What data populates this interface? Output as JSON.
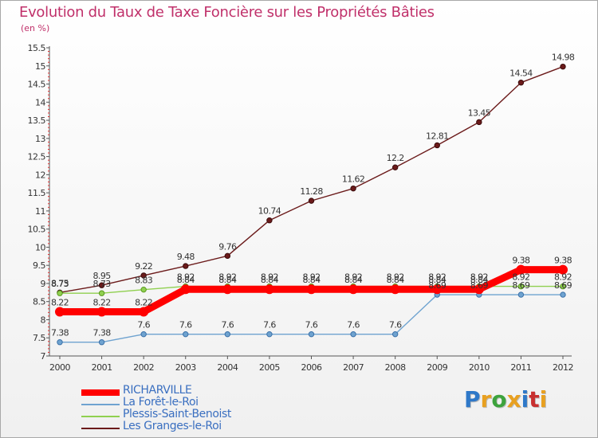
{
  "title": "Evolution du Taux de Taxe Foncière sur les Propriétés Bâties",
  "unit_label": "(en %)",
  "logo": {
    "text": "Proxiti",
    "letters": [
      "P",
      "r",
      "o",
      "x",
      "i",
      "t",
      "i"
    ],
    "colors": [
      "#2e78c8",
      "#e8a020",
      "#3da33d",
      "#e8a020",
      "#2e78c8",
      "#c83030",
      "#e8a020"
    ]
  },
  "chart_data": {
    "type": "line",
    "x": [
      "2000",
      "2001",
      "2002",
      "2003",
      "2004",
      "2005",
      "2006",
      "2007",
      "2008",
      "2009",
      "2010",
      "2011",
      "2012"
    ],
    "ylim": [
      7,
      15.5
    ],
    "yticks": [
      "7",
      "7.5",
      "8",
      "8.5",
      "9",
      "9.5",
      "10",
      "10.5",
      "11",
      "11.5",
      "12",
      "12.5",
      "13",
      "13.5",
      "14",
      "14.5",
      "15",
      "15.5"
    ],
    "grid": false,
    "legend_position": "bottom-left",
    "series": [
      {
        "name": "Les Granges-le-Roi",
        "color": "#6b1a1a",
        "values": [
          8.75,
          8.95,
          9.22,
          9.48,
          9.76,
          10.74,
          11.28,
          11.62,
          12.2,
          12.81,
          13.45,
          14.54,
          14.98
        ],
        "labels": [
          "8.75",
          "8.95",
          "9.22",
          "9.48",
          "9.76",
          "10.74",
          "11.28",
          "11.62",
          "12.2",
          "12.81",
          "13.45",
          "14.54",
          "14.98"
        ]
      },
      {
        "name": "Plessis-Saint-Benoist",
        "color": "#90d050",
        "values": [
          8.73,
          8.73,
          8.83,
          8.92,
          8.92,
          8.92,
          8.92,
          8.92,
          8.92,
          8.92,
          8.92,
          8.92,
          8.92
        ],
        "labels": [
          "8.73",
          "8.73",
          "8.83",
          "8.92",
          "8.92",
          "8.92",
          "8.92",
          "8.92",
          "8.92",
          "8.92",
          "8.92",
          "8.92",
          "8.92"
        ]
      },
      {
        "name": "La Forêt-le-Roi",
        "color": "#6fa3d0",
        "values": [
          7.38,
          7.38,
          7.6,
          7.6,
          7.6,
          7.6,
          7.6,
          7.6,
          7.6,
          8.69,
          8.69,
          8.69,
          8.69
        ],
        "labels": [
          "7.38",
          "7.38",
          "7.6",
          "7.6",
          "7.6",
          "7.6",
          "7.6",
          "7.6",
          "7.6",
          "8.69",
          "8.69",
          "8.69",
          "8.69"
        ]
      },
      {
        "name": "RICHARVILLE",
        "color": "#ff0000",
        "values": [
          8.22,
          8.22,
          8.22,
          8.84,
          8.84,
          8.84,
          8.84,
          8.84,
          8.84,
          8.84,
          8.84,
          9.38,
          9.38
        ],
        "labels": [
          "8.22",
          "8.22",
          "8.22",
          "8.84",
          "8.84",
          "8.84",
          "8.84",
          "8.84",
          "8.84",
          "8.84",
          "8.84",
          "9.38",
          "9.38"
        ]
      }
    ],
    "legend": [
      {
        "name": "RICHARVILLE",
        "color": "#ff0000",
        "text_color": "#3a6fc0",
        "thickness": 8
      },
      {
        "name": "La Forêt-le-Roi",
        "color": "#6fa3d0",
        "text_color": "#3a6fc0",
        "thickness": 2
      },
      {
        "name": "Plessis-Saint-Benoist",
        "color": "#90d050",
        "text_color": "#3a6fc0",
        "thickness": 2
      },
      {
        "name": "Les Granges-le-Roi",
        "color": "#6b1a1a",
        "text_color": "#3a6fc0",
        "thickness": 2
      }
    ]
  }
}
